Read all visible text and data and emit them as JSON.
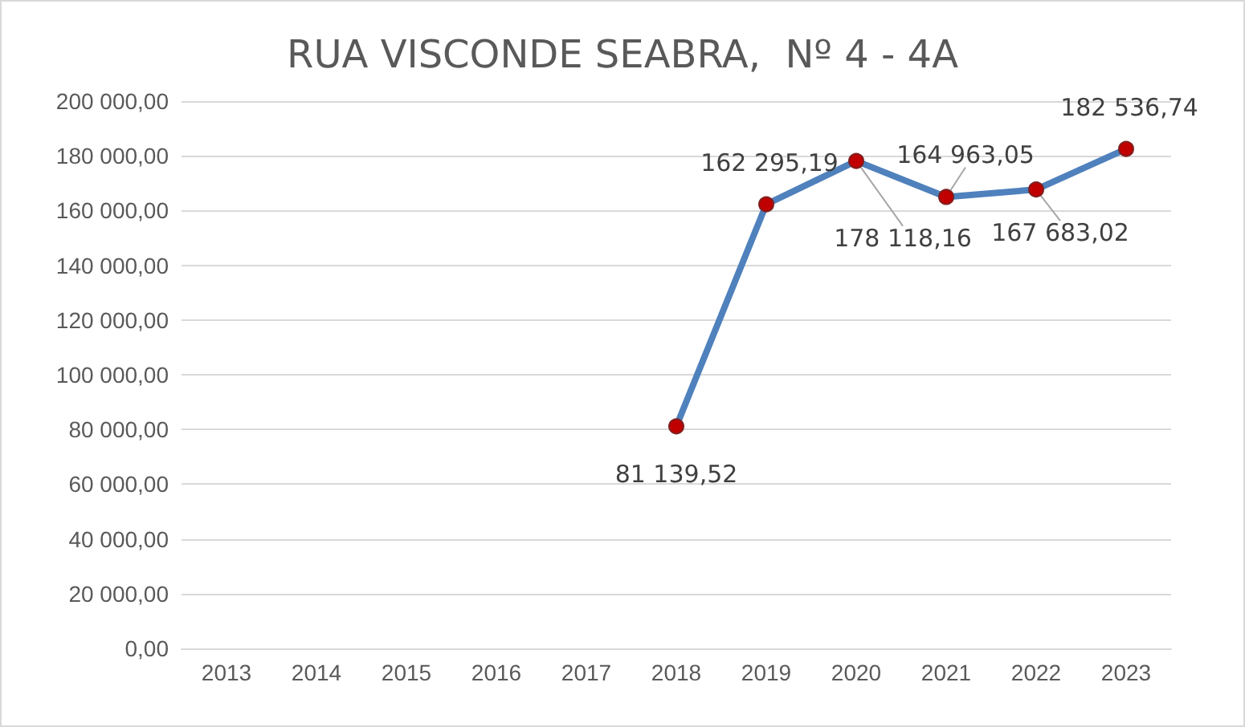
{
  "chart_data": {
    "type": "line",
    "title": "RUA VISCONDE SEABRA,  Nº 4 - 4A",
    "categories": [
      "2013",
      "2014",
      "2015",
      "2016",
      "2017",
      "2018",
      "2019",
      "2020",
      "2021",
      "2022",
      "2023"
    ],
    "series": [
      {
        "color": "#4f81bd",
        "colors": [
          null,
          null,
          null,
          null,
          null,
          "#c00000",
          "#c00000",
          "#c00000",
          "#c00000",
          "#c00000",
          "#c00000"
        ],
        "values": [
          null,
          null,
          null,
          null,
          null,
          81139.52,
          162295.19,
          178118.16,
          164963.05,
          167683.02,
          182536.74
        ],
        "value_labels": [
          null,
          null,
          null,
          null,
          null,
          "81 139,52",
          "162 295,19",
          "178 118,16",
          "164 963,05",
          "167 683,02",
          "182 536,74"
        ]
      }
    ],
    "ylim": [
      0,
      200000
    ],
    "yticks": [
      {
        "value": 0,
        "label": "0,00"
      },
      {
        "value": 20000,
        "label": "20 000,00"
      },
      {
        "value": 40000,
        "label": "40 000,00"
      },
      {
        "value": 60000,
        "label": "60 000,00"
      },
      {
        "value": 80000,
        "label": "80 000,00"
      },
      {
        "value": 100000,
        "label": "100 000,00"
      },
      {
        "value": 120000,
        "label": "120 000,00"
      },
      {
        "value": 140000,
        "label": "140 000,00"
      },
      {
        "value": 160000,
        "label": "160 000,00"
      },
      {
        "value": 180000,
        "label": "180 000,00"
      },
      {
        "value": 200000,
        "label": "200 000,00"
      }
    ],
    "grid": "y",
    "marker": "circle",
    "line_style": "solid"
  }
}
